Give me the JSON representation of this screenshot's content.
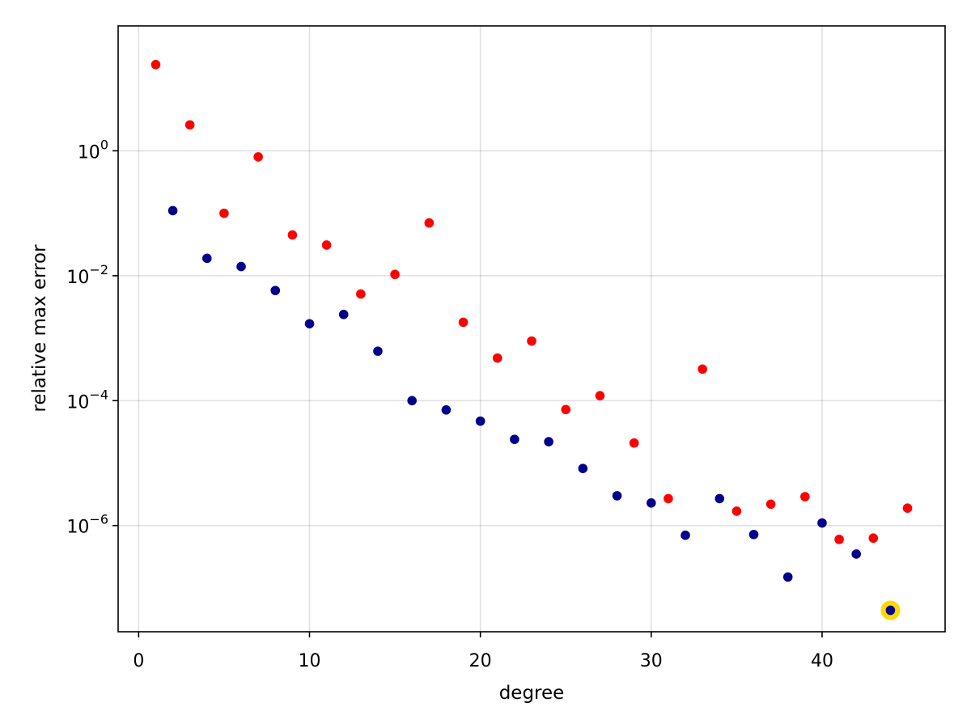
{
  "chart_data": {
    "type": "scatter",
    "title": "",
    "xlabel": "degree",
    "ylabel": "relative max error",
    "xlim": [
      -1.2,
      47.2
    ],
    "ylim": [
      -7.7,
      2.0
    ],
    "yscale": "log10",
    "grid": true,
    "x_ticks": [
      0,
      10,
      20,
      30,
      40
    ],
    "x_tick_labels": [
      "0",
      "10",
      "20",
      "30",
      "40"
    ],
    "y_ticks": [
      0,
      -2,
      -4,
      -6
    ],
    "y_tick_labels": [
      {
        "base": "10",
        "exp": "0"
      },
      {
        "base": "10",
        "exp": "−2"
      },
      {
        "base": "10",
        "exp": "−4"
      },
      {
        "base": "10",
        "exp": "−6"
      }
    ],
    "series": [
      {
        "color": "#ff0000",
        "points": [
          [
            1,
            24
          ],
          [
            3,
            2.6
          ],
          [
            5,
            0.1
          ],
          [
            7,
            0.8
          ],
          [
            9,
            0.045
          ],
          [
            11,
            0.031
          ],
          [
            13,
            0.0051
          ],
          [
            15,
            0.0105
          ],
          [
            17,
            0.07
          ],
          [
            19,
            0.0018
          ],
          [
            21,
            0.00048
          ],
          [
            23,
            0.0009
          ],
          [
            25,
            7.2e-05
          ],
          [
            27,
            0.00012
          ],
          [
            29,
            2.1e-05
          ],
          [
            31,
            2.7e-06
          ],
          [
            33,
            0.00032
          ],
          [
            35,
            1.7e-06
          ],
          [
            37,
            2.2e-06
          ],
          [
            39,
            2.9e-06
          ],
          [
            41,
            6e-07
          ],
          [
            43,
            6.3e-07
          ],
          [
            45,
            1.9e-06
          ]
        ]
      },
      {
        "color": "#00008b",
        "points": [
          [
            2,
            0.11
          ],
          [
            4,
            0.019
          ],
          [
            6,
            0.014
          ],
          [
            8,
            0.0058
          ],
          [
            10,
            0.0017
          ],
          [
            12,
            0.0024
          ],
          [
            14,
            0.00062
          ],
          [
            16,
            0.0001
          ],
          [
            18,
            7.1e-05
          ],
          [
            20,
            4.7e-05
          ],
          [
            22,
            2.4e-05
          ],
          [
            24,
            2.2e-05
          ],
          [
            26,
            8.2e-06
          ],
          [
            28,
            3e-06
          ],
          [
            30,
            2.3e-06
          ],
          [
            32,
            7e-07
          ],
          [
            34,
            2.7e-06
          ],
          [
            36,
            7.2e-07
          ],
          [
            38,
            1.5e-07
          ],
          [
            40,
            1.1e-06
          ],
          [
            42,
            3.5e-07
          ],
          [
            44,
            4.4e-08
          ]
        ]
      }
    ],
    "highlight": {
      "x": 44,
      "y": 4.4e-08,
      "ring_color": "#ffd700"
    }
  }
}
